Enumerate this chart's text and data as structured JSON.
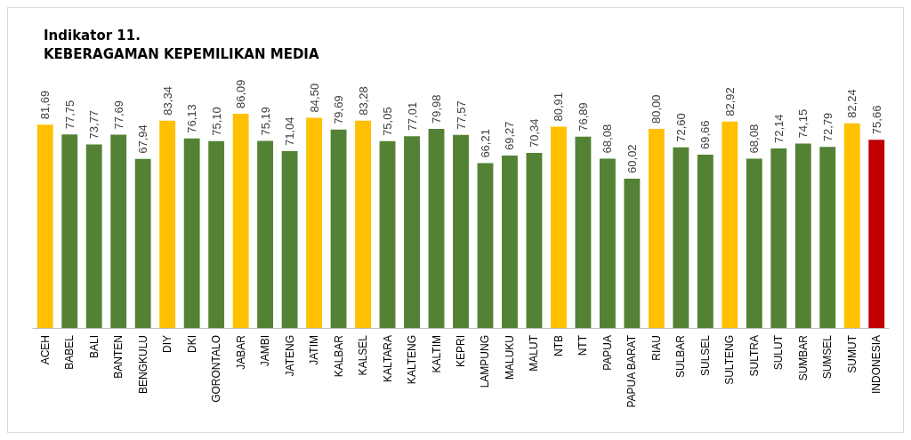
{
  "chart_data": {
    "type": "bar",
    "title": "Indikator 11.",
    "subtitle": "KEBERAGAMAN KEPEMILIKAN MEDIA",
    "categories": [
      "ACEH",
      "BABEL",
      "BALI",
      "BANTEN",
      "BENGKULU",
      "DIY",
      "DKI",
      "GORONTALO",
      "JABAR",
      "JAMBI",
      "JATENG",
      "JATIM",
      "KALBAR",
      "KALSEL",
      "KALTARA",
      "KALTENG",
      "KALTIM",
      "KEPRI",
      "LAMPUNG",
      "MALUKU",
      "MALUT",
      "NTB",
      "NTT",
      "PAPUA",
      "PAPUA BARAT",
      "RIAU",
      "SULBAR",
      "SULSEL",
      "SULTENG",
      "SULTRA",
      "SULUT",
      "SUMBAR",
      "SUMSEL",
      "SUMUT",
      "INDONESIA"
    ],
    "values": [
      81.69,
      77.75,
      73.77,
      77.69,
      67.94,
      83.34,
      76.13,
      75.1,
      86.09,
      75.19,
      71.04,
      84.5,
      79.69,
      83.28,
      75.05,
      77.01,
      79.98,
      77.57,
      66.21,
      69.27,
      70.34,
      80.91,
      76.89,
      68.08,
      60.02,
      80.0,
      72.6,
      69.66,
      82.92,
      68.08,
      72.14,
      74.15,
      72.79,
      82.24,
      75.66
    ],
    "value_labels": [
      "81,69",
      "77,75",
      "73,77",
      "77,69",
      "67,94",
      "83,34",
      "76,13",
      "75,10",
      "86,09",
      "75,19",
      "71,04",
      "84,50",
      "79,69",
      "83,28",
      "75,05",
      "77,01",
      "79,98",
      "77,57",
      "66,21",
      "69,27",
      "70,34",
      "80,91",
      "76,89",
      "68,08",
      "60,02",
      "80,00",
      "72,60",
      "69,66",
      "82,92",
      "68,08",
      "72,14",
      "74,15",
      "72,79",
      "82,24",
      "75,66"
    ],
    "colors": [
      "#ffc000",
      "#548235",
      "#548235",
      "#548235",
      "#548235",
      "#ffc000",
      "#548235",
      "#548235",
      "#ffc000",
      "#548235",
      "#548235",
      "#ffc000",
      "#548235",
      "#ffc000",
      "#548235",
      "#548235",
      "#548235",
      "#548235",
      "#548235",
      "#548235",
      "#548235",
      "#ffc000",
      "#548235",
      "#548235",
      "#548235",
      "#ffc000",
      "#548235",
      "#548235",
      "#ffc000",
      "#548235",
      "#548235",
      "#548235",
      "#548235",
      "#ffc000",
      "#c00000"
    ],
    "grid": false
  }
}
